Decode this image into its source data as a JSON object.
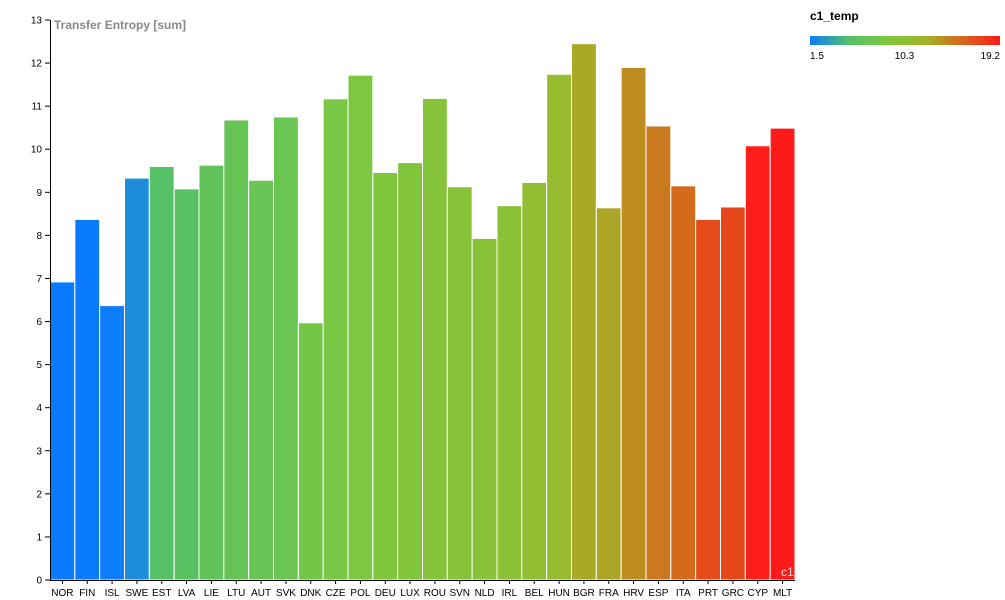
{
  "chart_data": {
    "type": "bar",
    "title": "Transfer Entropy [sum]",
    "categories": [
      "NOR",
      "FIN",
      "ISL",
      "SWE",
      "EST",
      "LVA",
      "LIE",
      "LTU",
      "AUT",
      "SVK",
      "DNK",
      "CZE",
      "POL",
      "DEU",
      "LUX",
      "ROU",
      "SVN",
      "NLD",
      "IRL",
      "BEL",
      "HUN",
      "BGR",
      "FRA",
      "HRV",
      "ESP",
      "ITA",
      "PRT",
      "GRC",
      "CYP",
      "MLT"
    ],
    "values": [
      6.92,
      8.37,
      6.37,
      9.33,
      9.6,
      9.08,
      9.63,
      10.68,
      9.28,
      10.75,
      5.97,
      11.17,
      11.72,
      9.46,
      9.69,
      11.18,
      9.13,
      7.93,
      8.69,
      9.23,
      11.74,
      12.45,
      8.64,
      11.9,
      10.54,
      9.15,
      8.37,
      8.66,
      10.08,
      10.49
    ],
    "color_values": [
      1.5,
      1.5,
      1.6,
      2.4,
      5.3,
      5.6,
      6.3,
      6.6,
      7.0,
      7.1,
      7.9,
      8.2,
      8.6,
      9.0,
      9.1,
      9.5,
      9.6,
      9.9,
      10.2,
      10.6,
      11.1,
      12.7,
      12.9,
      14.0,
      14.9,
      15.6,
      17.0,
      17.2,
      19.0,
      19.2
    ],
    "ylim": [
      0,
      13
    ],
    "yticks": [
      0,
      1,
      2,
      3,
      4,
      5,
      6,
      7,
      8,
      9,
      10,
      11,
      12,
      13
    ],
    "xlabel": "",
    "ylabel": "",
    "grid": false,
    "legend": {
      "title": "c1_temp",
      "placement": "top-right",
      "min_label": "1.5",
      "mid_label": "10.3",
      "max_label": "19.2",
      "min": 1.5,
      "max": 19.2,
      "colors": [
        "#0a7bff",
        "#54c06a",
        "#7cc840",
        "#a0b628",
        "#d6681c",
        "#ff1a1a"
      ]
    },
    "watermark": "c1"
  }
}
